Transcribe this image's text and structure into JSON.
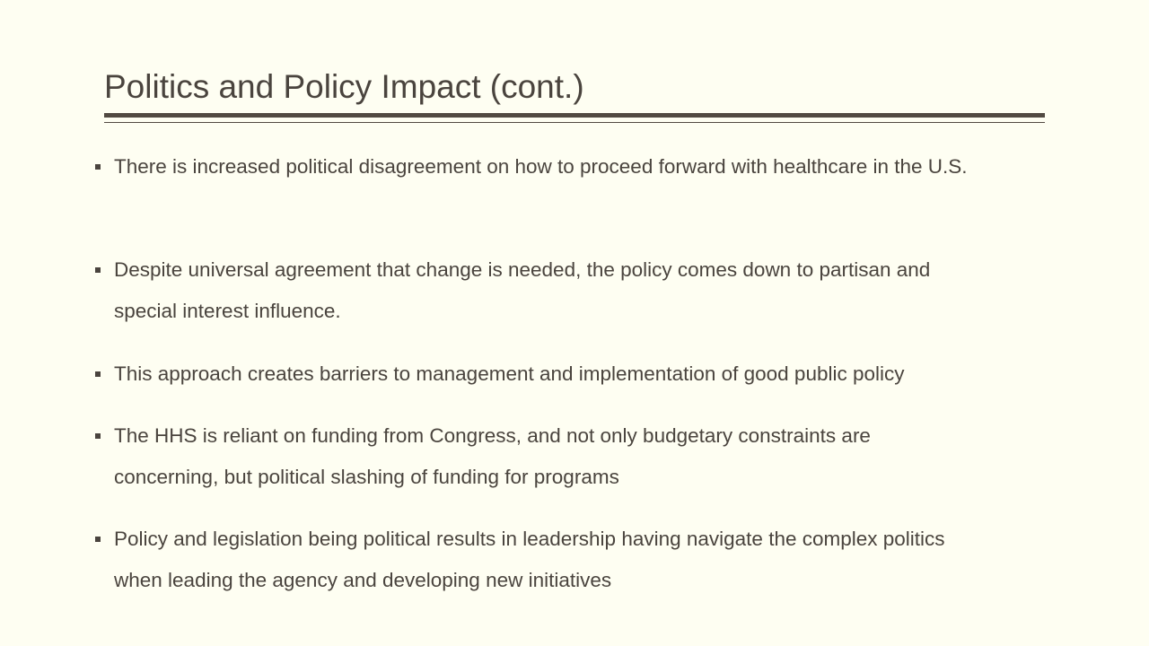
{
  "slide": {
    "title": "Politics and Policy Impact (cont.)",
    "bullets": [
      "There is increased political disagreement on how to proceed forward with healthcare in the U.S.",
      "Despite universal agreement that change is needed, the policy comes down to partisan and special interest influence.",
      "This approach creates barriers to management and implementation of good public policy",
      "The HHS is reliant on funding from Congress, and not only budgetary constraints are concerning, but political slashing of funding for programs",
      "Policy and legislation being political results in leadership having navigate the complex politics when leading the agency and developing new initiatives"
    ]
  },
  "colors": {
    "background": "#fefef2",
    "text": "#4a443e",
    "rule": "#524a42"
  }
}
